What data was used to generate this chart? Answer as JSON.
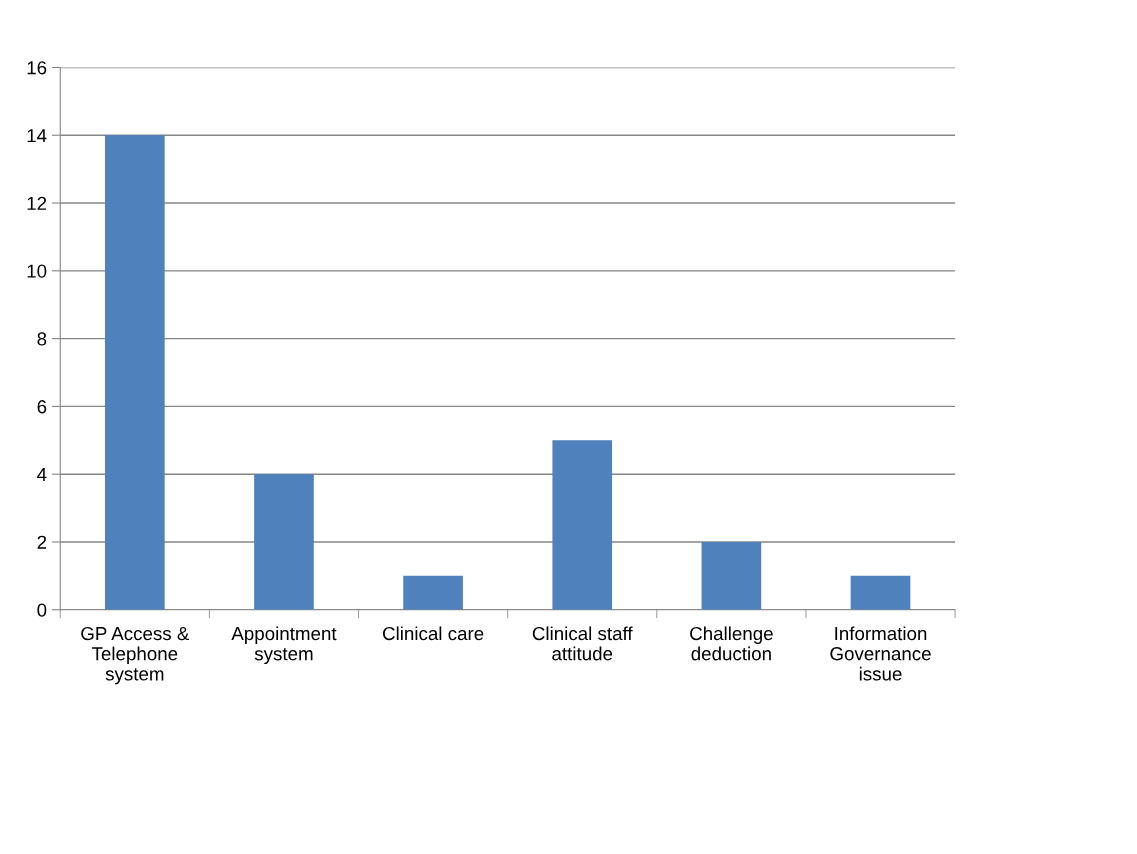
{
  "chart_data": {
    "type": "bar",
    "categories": [
      "GP Access & Telephone system",
      "Appointment system",
      "Clinical care",
      "Clinical staff attitude",
      "Challenge deduction",
      "Information Governance issue"
    ],
    "values": [
      14,
      4,
      1,
      5,
      2,
      1
    ],
    "color": "#4f81bd",
    "ylim": [
      0,
      16
    ],
    "yticks": [
      0,
      2,
      4,
      6,
      8,
      10,
      12,
      14,
      16
    ],
    "grid": "y",
    "legend": false
  }
}
